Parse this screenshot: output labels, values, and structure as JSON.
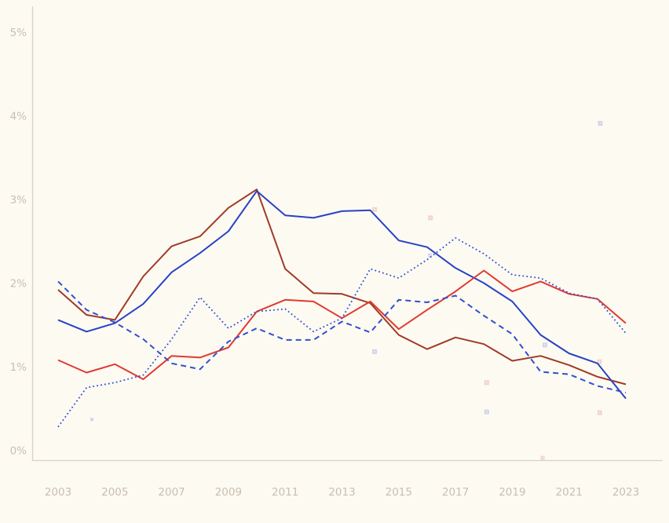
{
  "chart_data": {
    "type": "line",
    "title": "",
    "xlabel": "",
    "ylabel": "",
    "grid": false,
    "legend": "none",
    "background_color": "#fdfaf2",
    "axis_line_color": "#d9d2c5",
    "tick_label_color": "#c8bfb0",
    "x": [
      2003,
      2004,
      2005,
      2006,
      2007,
      2008,
      2009,
      2010,
      2011,
      2012,
      2013,
      2014,
      2015,
      2016,
      2017,
      2018,
      2019,
      2020,
      2021,
      2022,
      2023
    ],
    "x_axis": {
      "ticks": [
        "2003",
        "2005",
        "2007",
        "2009",
        "2011",
        "2013",
        "2015",
        "2017",
        "2019",
        "2021",
        "2023"
      ],
      "tick_years": [
        2003,
        2005,
        2007,
        2009,
        2011,
        2013,
        2015,
        2017,
        2019,
        2021,
        2023
      ]
    },
    "y_axis": {
      "ticks": [
        "0%",
        "1%",
        "2%",
        "3%",
        "4%",
        "5%"
      ],
      "tick_values": [
        0,
        1,
        2,
        3,
        4,
        5
      ]
    },
    "ylim": [
      0,
      5.4
    ],
    "series": [
      {
        "name": "dark-red-solid-line",
        "color": "#a03a26",
        "style": "solid",
        "width": 2,
        "values": [
          1.92,
          1.62,
          1.56,
          2.08,
          2.44,
          2.56,
          2.9,
          3.12,
          2.17,
          1.88,
          1.87,
          1.76,
          1.38,
          1.21,
          1.35,
          1.27,
          1.07,
          1.13,
          1.02,
          0.88,
          0.79
        ]
      },
      {
        "name": "blue-solid-line",
        "color": "#2743c5",
        "style": "solid",
        "width": 2,
        "values": [
          1.56,
          1.42,
          1.52,
          1.75,
          2.13,
          2.36,
          2.62,
          3.1,
          2.81,
          2.78,
          2.86,
          2.87,
          2.51,
          2.43,
          2.18,
          2.0,
          1.78,
          1.38,
          1.16,
          1.04,
          0.62
        ]
      },
      {
        "name": "red-solid-line",
        "color": "#e03a31",
        "style": "solid",
        "width": 2,
        "values": [
          1.08,
          0.93,
          1.03,
          0.85,
          1.13,
          1.11,
          1.23,
          1.66,
          1.8,
          1.78,
          1.58,
          1.78,
          1.45,
          1.68,
          1.9,
          2.15,
          1.9,
          2.02,
          1.87,
          1.81,
          1.52
        ]
      },
      {
        "name": "blue-dashed-line",
        "color": "#3050d0",
        "style": "dashed",
        "width": 2,
        "values": [
          2.02,
          1.68,
          1.53,
          1.33,
          1.04,
          0.97,
          1.3,
          1.46,
          1.32,
          1.32,
          1.54,
          1.41,
          1.8,
          1.77,
          1.85,
          1.61,
          1.39,
          0.94,
          0.91,
          0.77,
          0.69
        ]
      },
      {
        "name": "blue-dotted-line",
        "color": "#3050d0",
        "style": "dotted",
        "width": 1.8,
        "values": [
          0.28,
          0.75,
          0.81,
          0.9,
          1.33,
          1.83,
          1.46,
          1.66,
          1.69,
          1.42,
          1.58,
          2.17,
          2.06,
          2.28,
          2.54,
          2.35,
          2.1,
          2.06,
          1.88,
          1.81,
          1.4
        ]
      }
    ],
    "scatter_markers": {
      "colors": {
        "pink": "#eed2c9",
        "lavender": "#cdd3ea"
      },
      "points": [
        {
          "x": 2004.19,
          "y": 0.37,
          "c": "lavender",
          "s": 4
        },
        {
          "x": 2014.15,
          "y": 2.88,
          "c": "pink",
          "s": 6
        },
        {
          "x": 2014.15,
          "y": 1.18,
          "c": "lavender",
          "s": 6
        },
        {
          "x": 2016.12,
          "y": 2.78,
          "c": "pink",
          "s": 6
        },
        {
          "x": 2016.1,
          "y": 2.33,
          "c": "lavender",
          "s": 5
        },
        {
          "x": 2018.1,
          "y": 0.81,
          "c": "pink",
          "s": 6
        },
        {
          "x": 2018.1,
          "y": 0.46,
          "c": "lavender",
          "s": 6
        },
        {
          "x": 2020.07,
          "y": -0.09,
          "c": "pink",
          "s": 5
        },
        {
          "x": 2020.15,
          "y": 1.26,
          "c": "lavender",
          "s": 6
        },
        {
          "x": 2022.07,
          "y": 1.06,
          "c": "pink",
          "s": 6
        },
        {
          "x": 2022.08,
          "y": 0.45,
          "c": "pink",
          "s": 6
        },
        {
          "x": 2022.1,
          "y": 3.91,
          "c": "lavender",
          "s": 6
        }
      ]
    }
  }
}
